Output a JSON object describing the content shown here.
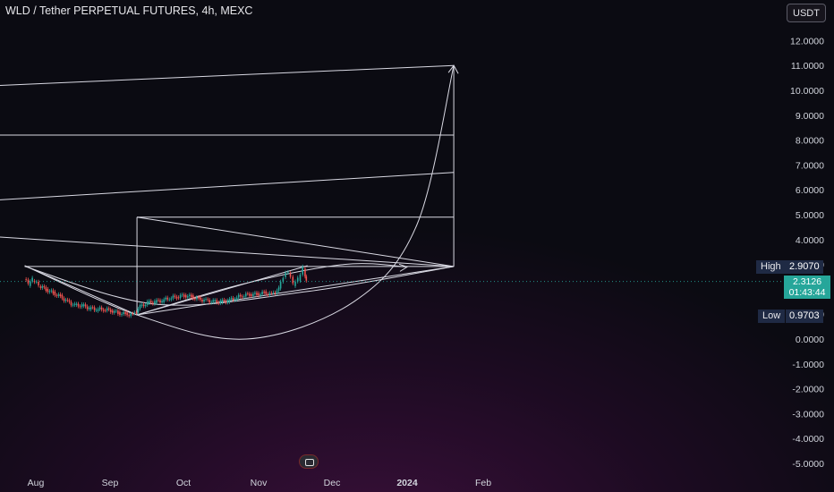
{
  "header": {
    "title": "WLD / Tether PERPETUAL FUTURES, 4h, MEXC",
    "currency_button": "USDT"
  },
  "price_scale": {
    "high_label": "High",
    "high_value": "2.9070",
    "low_label": "Low",
    "low_value": "0.9703",
    "current_price": "2.3126",
    "countdown": "01:43:44"
  },
  "chart_data": {
    "type": "line",
    "title": "WLD / Tether PERPETUAL FUTURES, 4h, MEXC",
    "xlabel": "",
    "ylabel": "",
    "y_ticks": [
      "12.0000",
      "11.0000",
      "10.0000",
      "9.0000",
      "8.0000",
      "7.0000",
      "6.0000",
      "5.0000",
      "4.0000",
      "3.0000",
      "2.0000",
      "1.0000",
      "0.0000",
      "-1.0000",
      "-2.0000",
      "-3.0000",
      "-4.0000",
      "-5.0000"
    ],
    "ylim": [
      -5.3,
      12.6
    ],
    "x_ticks": [
      "Aug",
      "Sep",
      "Oct",
      "Nov",
      "Dec",
      "2024",
      "Feb"
    ],
    "x_tick_bold": "2024",
    "colors": {
      "up": "#26a69a",
      "down": "#ef5350",
      "drawing": "#d9d9e3",
      "current": "#26a69a"
    },
    "price_series": {
      "name": "WLD/USDT",
      "points": [
        [
          "Jul 25",
          2.45
        ],
        [
          "Jul 28",
          2.2
        ],
        [
          "Jul 31",
          2.4
        ],
        [
          "Aug 3",
          2.15
        ],
        [
          "Aug 6",
          2.0
        ],
        [
          "Aug 9",
          1.85
        ],
        [
          "Aug 12",
          1.7
        ],
        [
          "Aug 15",
          1.5
        ],
        [
          "Aug 18",
          1.35
        ],
        [
          "Aug 21",
          1.35
        ],
        [
          "Aug 24",
          1.25
        ],
        [
          "Aug 27",
          1.2
        ],
        [
          "Aug 30",
          1.2
        ],
        [
          "Sep 2",
          1.15
        ],
        [
          "Sep 5",
          1.05
        ],
        [
          "Sep 8",
          1.0
        ],
        [
          "Sep 11",
          0.97
        ],
        [
          "Sep 14",
          1.3
        ],
        [
          "Sep 17",
          1.45
        ],
        [
          "Sep 20",
          1.5
        ],
        [
          "Sep 23",
          1.55
        ],
        [
          "Sep 26",
          1.65
        ],
        [
          "Sep 29",
          1.7
        ],
        [
          "Oct 2",
          1.75
        ],
        [
          "Oct 5",
          1.7
        ],
        [
          "Oct 8",
          1.6
        ],
        [
          "Oct 11",
          1.55
        ],
        [
          "Oct 14",
          1.5
        ],
        [
          "Oct 17",
          1.5
        ],
        [
          "Oct 20",
          1.55
        ],
        [
          "Oct 23",
          1.65
        ],
        [
          "Oct 26",
          1.75
        ],
        [
          "Oct 29",
          1.8
        ],
        [
          "Nov 1",
          1.8
        ],
        [
          "Nov 4",
          1.85
        ],
        [
          "Nov 7",
          1.8
        ],
        [
          "Nov 10",
          2.0
        ],
        [
          "Nov 12",
          2.5
        ],
        [
          "Nov 14",
          2.7
        ],
        [
          "Nov 16",
          2.2
        ],
        [
          "Nov 18",
          2.4
        ],
        [
          "Nov 20",
          2.85
        ],
        [
          "Nov 21",
          2.31
        ]
      ]
    },
    "drawings": [
      {
        "name": "resistance-line",
        "from": [
          "Jul 24",
          2.92
        ],
        "to": [
          "Jan 20",
          2.92
        ]
      },
      {
        "name": "range-top-line",
        "from": [
          "Sep 12",
          4.9
        ],
        "to": [
          "Jan 20",
          4.9
        ]
      },
      {
        "name": "range-left-vertical",
        "from": [
          "Sep 12",
          0.97
        ],
        "to": [
          "Sep 12",
          4.9
        ]
      },
      {
        "name": "target-vertical",
        "from": [
          "Jan 20",
          2.92
        ],
        "to": [
          "Jan 20",
          11.0
        ]
      },
      {
        "name": "diagonal-down-line",
        "from": [
          "Sep 12",
          4.9
        ],
        "to": [
          "Jan 20",
          2.92
        ]
      },
      {
        "name": "channel-lower",
        "from": [
          "Sep 12",
          0.97
        ],
        "to": [
          "Jan 20",
          2.92
        ]
      },
      {
        "name": "channel-upper",
        "from": [
          "Sep 12",
          0.97
        ],
        "to": [
          "Nov 21",
          2.95
        ]
      },
      {
        "name": "target-fan-upper",
        "from": [
          "Jan 20",
          11.0
        ],
        "to": [
          "Mar 18",
          10.2
        ]
      },
      {
        "name": "target-level-8",
        "from": [
          "Jan 20",
          8.2
        ],
        "to": [
          "Mar 18",
          8.2
        ]
      },
      {
        "name": "target-fan-lower",
        "from": [
          "Jan 20",
          6.7
        ],
        "to": [
          "Mar 18",
          5.6
        ]
      },
      {
        "name": "projection-line",
        "from": [
          "Jan 20",
          2.92
        ],
        "to": [
          "Mar 18",
          4.1
        ]
      },
      {
        "name": "downtrend-line",
        "from": [
          "Jul 24",
          2.95
        ],
        "to": [
          "Sep 12",
          0.97
        ]
      }
    ],
    "curves": [
      {
        "name": "parabolic-arc",
        "points": [
          [
            "Jul 24",
            2.95
          ],
          [
            "Sep 12",
            0.97
          ],
          [
            "Oct 27",
            0.0
          ],
          [
            "Dec 10",
            1.5
          ],
          [
            "Jan 5",
            4.6
          ],
          [
            "Jan 20",
            11.0
          ]
        ]
      },
      {
        "name": "rounding-arc",
        "points": [
          [
            "Sep 12",
            0.97
          ],
          [
            "Oct 25",
            2.2
          ],
          [
            "Dec 6",
            3.0
          ],
          [
            "Jan 1",
            2.9
          ]
        ]
      },
      {
        "name": "long-curve",
        "points": [
          [
            "Jul 24",
            2.92
          ],
          [
            "Sep 20",
            1.4
          ],
          [
            "Nov 20",
            1.9
          ],
          [
            "Jan 20",
            2.92
          ]
        ]
      }
    ],
    "arrows": [
      {
        "name": "arrow-to-target",
        "at": [
          "Jan 20",
          11.0
        ]
      },
      {
        "name": "arrow-on-arc",
        "at": [
          "Jan 1",
          2.9
        ]
      }
    ],
    "grid": false,
    "legend": "none"
  }
}
